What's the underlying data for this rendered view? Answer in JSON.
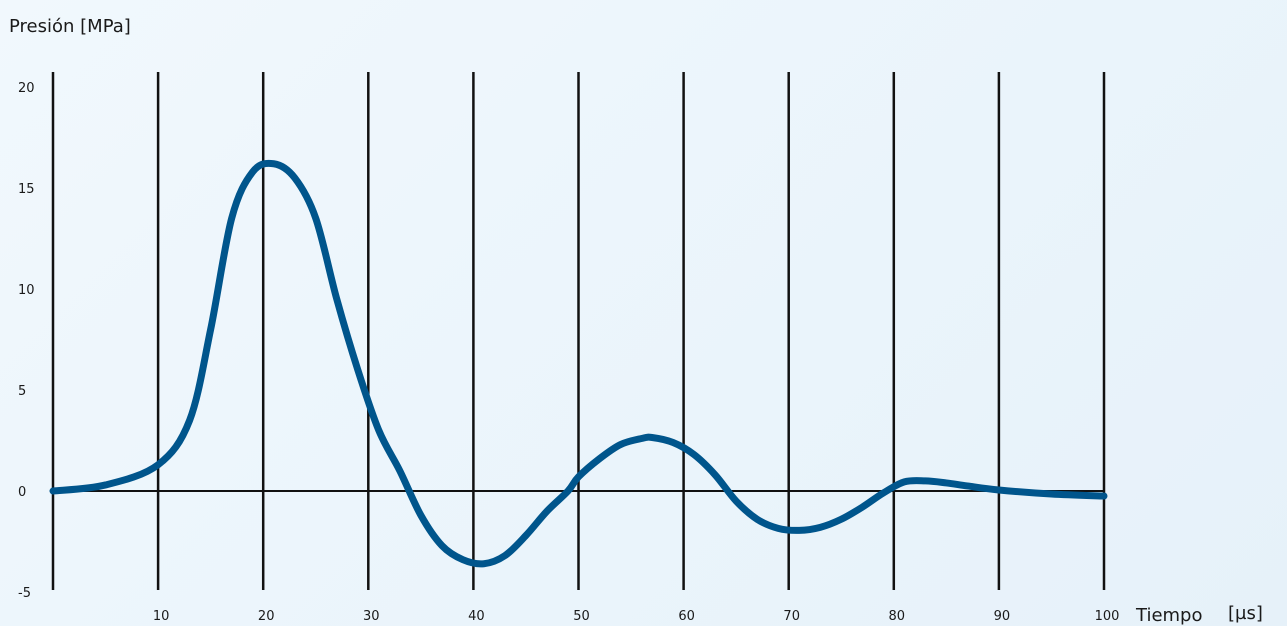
{
  "chart_data": {
    "type": "line",
    "xlabel": "Tiempo",
    "xunit": "[µs]",
    "ylabel": "Presión [MPa]",
    "xlim": [
      0,
      100
    ],
    "ylim": [
      -5,
      20
    ],
    "x_ticks": [
      10,
      20,
      30,
      40,
      50,
      60,
      70,
      80,
      90,
      100
    ],
    "y_ticks": [
      -5,
      0,
      5,
      10,
      15,
      20
    ],
    "line_color": "#00558c",
    "series": [
      {
        "x": [
          0,
          5,
          10,
          13,
          15,
          17,
          19,
          21,
          23,
          25,
          27,
          29,
          31,
          33,
          35,
          37,
          39,
          41,
          43,
          45,
          47,
          49,
          50,
          52,
          54,
          56,
          57,
          59,
          61,
          63,
          65,
          67,
          69,
          71,
          73,
          75,
          77,
          79,
          81,
          83,
          85,
          87,
          90,
          95,
          100
        ],
        "y": [
          0.0,
          0.3,
          1.3,
          3.5,
          8.0,
          13.5,
          15.8,
          16.2,
          15.5,
          13.5,
          9.5,
          6.0,
          3.0,
          1.0,
          -1.2,
          -2.7,
          -3.4,
          -3.6,
          -3.2,
          -2.2,
          -1.0,
          0.0,
          0.7,
          1.6,
          2.3,
          2.6,
          2.65,
          2.4,
          1.8,
          0.8,
          -0.5,
          -1.4,
          -1.85,
          -1.95,
          -1.8,
          -1.4,
          -0.8,
          -0.1,
          0.45,
          0.5,
          0.4,
          0.25,
          0.05,
          -0.15,
          -0.25
        ]
      }
    ]
  }
}
